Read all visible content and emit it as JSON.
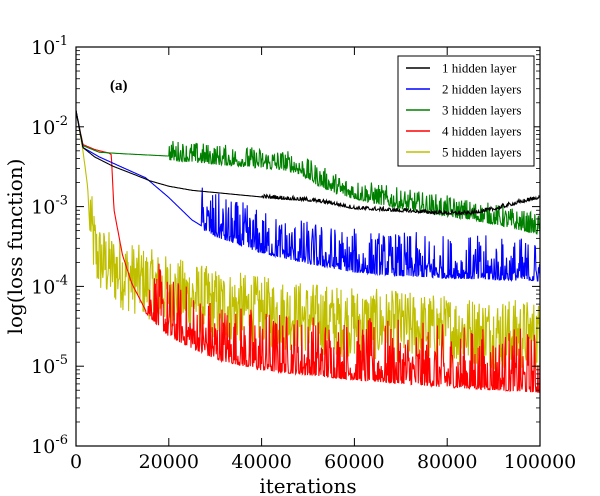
{
  "chart_data": {
    "type": "line",
    "panel_label": "(a)",
    "xlabel": "iterations",
    "ylabel": "log(loss function)",
    "xlim": [
      0,
      100000
    ],
    "ylim_log10": [
      -6,
      -1
    ],
    "y_scale": "log",
    "x_ticks": [
      {
        "value": 0,
        "label": "0"
      },
      {
        "value": 20000,
        "label": "20000"
      },
      {
        "value": 40000,
        "label": "40000"
      },
      {
        "value": 60000,
        "label": "60000"
      },
      {
        "value": 80000,
        "label": "80000"
      },
      {
        "value": 100000,
        "label": "100000"
      }
    ],
    "y_ticks": [
      {
        "exp": -1,
        "base": "10",
        "sup": "-1"
      },
      {
        "exp": -2,
        "base": "10",
        "sup": "-2"
      },
      {
        "exp": -3,
        "base": "10",
        "sup": "-3"
      },
      {
        "exp": -4,
        "base": "10",
        "sup": "-4"
      },
      {
        "exp": -5,
        "base": "10",
        "sup": "-5"
      },
      {
        "exp": -6,
        "base": "10",
        "sup": "-6"
      }
    ],
    "legend_position": "top-right",
    "series": [
      {
        "name": "1 hidden layer",
        "color": "#000000",
        "noise_after": 40000,
        "noise_amp_dex": 0.04,
        "points": [
          [
            0,
            0.016
          ],
          [
            1500,
            0.0055
          ],
          [
            4000,
            0.0042
          ],
          [
            8000,
            0.0032
          ],
          [
            12000,
            0.0026
          ],
          [
            16000,
            0.0021
          ],
          [
            20000,
            0.0018
          ],
          [
            25000,
            0.0016
          ],
          [
            30000,
            0.0015
          ],
          [
            40000,
            0.00132
          ],
          [
            50000,
            0.0012
          ],
          [
            55000,
            0.0011
          ],
          [
            60000,
            0.00095
          ],
          [
            70000,
            0.00088
          ],
          [
            80000,
            0.00082
          ],
          [
            85000,
            0.00082
          ],
          [
            90000,
            0.00092
          ],
          [
            95000,
            0.0011
          ],
          [
            100000,
            0.0013
          ]
        ]
      },
      {
        "name": "2 hidden layers",
        "color": "#0000ff",
        "noise_after": 27000,
        "noise_amp_dex": 0.35,
        "points": [
          [
            0,
            0.016
          ],
          [
            1500,
            0.0055
          ],
          [
            5000,
            0.0042
          ],
          [
            10000,
            0.0031
          ],
          [
            15000,
            0.0023
          ],
          [
            20000,
            0.0013
          ],
          [
            25000,
            0.00068
          ],
          [
            30000,
            0.00045
          ],
          [
            40000,
            0.00028
          ],
          [
            50000,
            0.000205
          ],
          [
            60000,
            0.00016
          ],
          [
            70000,
            0.000145
          ],
          [
            80000,
            0.000135
          ],
          [
            90000,
            0.00013
          ],
          [
            100000,
            0.000125
          ]
        ]
      },
      {
        "name": "3 hidden layers",
        "color": "#008000",
        "noise_after": 20000,
        "noise_amp_dex": 0.22,
        "points": [
          [
            0,
            0.016
          ],
          [
            1500,
            0.0058
          ],
          [
            5000,
            0.0048
          ],
          [
            10000,
            0.0046
          ],
          [
            20000,
            0.0043
          ],
          [
            30000,
            0.0038
          ],
          [
            40000,
            0.0034
          ],
          [
            45000,
            0.0032
          ],
          [
            48000,
            0.0029
          ],
          [
            52000,
            0.0021
          ],
          [
            57000,
            0.00155
          ],
          [
            60000,
            0.0014
          ],
          [
            70000,
            0.00105
          ],
          [
            80000,
            0.00085
          ],
          [
            90000,
            0.00068
          ],
          [
            100000,
            0.0005
          ]
        ]
      },
      {
        "name": "4 hidden layers",
        "color": "#ff0000",
        "noise_after": 15000,
        "noise_amp_dex": 0.5,
        "points": [
          [
            0,
            0.016
          ],
          [
            1500,
            0.006
          ],
          [
            4000,
            0.0052
          ],
          [
            7000,
            0.0047
          ],
          [
            7600,
            0.0045
          ],
          [
            8200,
            0.0009
          ],
          [
            10000,
            0.00025
          ],
          [
            12000,
            0.00011
          ],
          [
            15000,
            5e-05
          ],
          [
            20000,
            2.5e-05
          ],
          [
            30000,
            1.3e-05
          ],
          [
            40000,
            9.5e-06
          ],
          [
            60000,
            7.2e-06
          ],
          [
            80000,
            5.8e-06
          ],
          [
            100000,
            5e-06
          ]
        ]
      },
      {
        "name": "5 hidden layers",
        "color": "#bfbf00",
        "noise_after": 3000,
        "noise_amp_dex": 0.45,
        "points": [
          [
            0,
            0.016
          ],
          [
            1500,
            0.005
          ],
          [
            2500,
            0.0018
          ],
          [
            3000,
            0.0005
          ],
          [
            3500,
            0.0002
          ],
          [
            4500,
            0.00011
          ],
          [
            6000,
            9e-05
          ],
          [
            10000,
            6.5e-05
          ],
          [
            20000,
            4e-05
          ],
          [
            30000,
            2.8e-05
          ],
          [
            40000,
            2.2e-05
          ],
          [
            60000,
            1.6e-05
          ],
          [
            80000,
            1.3e-05
          ],
          [
            100000,
            1.1e-05
          ]
        ]
      }
    ]
  }
}
